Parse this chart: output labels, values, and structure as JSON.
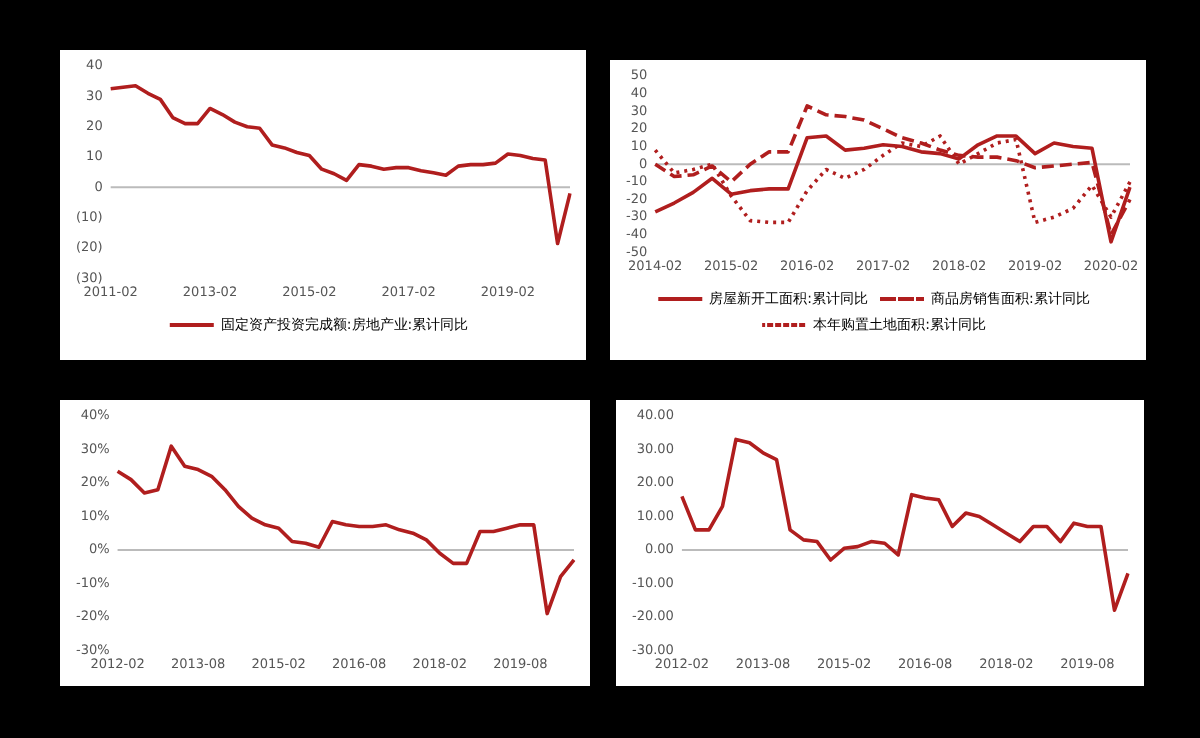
{
  "chart_data": [
    {
      "type": "line",
      "categories": [
        "2011-02",
        null,
        null,
        null,
        null,
        null,
        null,
        null,
        "2013-02",
        null,
        null,
        null,
        null,
        null,
        null,
        null,
        "2015-02",
        null,
        null,
        null,
        null,
        null,
        null,
        null,
        "2017-02",
        null,
        null,
        null,
        null,
        null,
        null,
        null,
        "2019-02",
        null,
        null,
        null,
        null,
        null
      ],
      "series": [
        {
          "name": "固定资产投资完成额:房地产业:累计同比",
          "color": "#b01e1e",
          "values": [
            32.5,
            33,
            33.5,
            31,
            29,
            23,
            21,
            21,
            26,
            24,
            21.5,
            20,
            19.5,
            14,
            13,
            11.5,
            10.5,
            6,
            4.5,
            2.3,
            7.5,
            7,
            6,
            6.5,
            6.5,
            5.5,
            4.8,
            4,
            7,
            7.5,
            7.5,
            8,
            11,
            10.5,
            9.5,
            9,
            -18.5,
            -2
          ]
        }
      ],
      "ref_lines": [
        {
          "axis": "y",
          "value": 0,
          "color": "#bbbbbb"
        }
      ],
      "ylim": [
        -30,
        40
      ],
      "yticks": [
        40,
        30,
        20,
        10,
        0,
        {
          "value": -10,
          "label": "(10)"
        },
        {
          "value": -20,
          "label": "(20)"
        },
        {
          "value": -30,
          "label": "(30)"
        }
      ],
      "grid": false,
      "legend": "bottom",
      "marker": "none"
    },
    {
      "type": "line",
      "categories": [
        "2014-02",
        null,
        null,
        null,
        "2015-02",
        null,
        null,
        null,
        "2016-02",
        null,
        null,
        null,
        "2017-02",
        null,
        null,
        null,
        "2018-02",
        null,
        null,
        null,
        "2019-02",
        null,
        null,
        null,
        "2020-02",
        null
      ],
      "series": [
        {
          "name": "房屋新开工面积:累计同比",
          "color": "#b01e1e",
          "line_style": "solid",
          "values": [
            -27,
            -22,
            -16,
            -8,
            -17,
            -15,
            -14,
            -14,
            15,
            16,
            8,
            9,
            11,
            10,
            7,
            6,
            3,
            11,
            16,
            16,
            6,
            12,
            10,
            9,
            -44,
            -13
          ]
        },
        {
          "name": "商品房销售面积:累计同比",
          "color": "#b01e1e",
          "line_style": "dashed",
          "values": [
            0,
            -7,
            -6,
            -1,
            -10,
            0,
            7,
            7,
            33,
            28,
            27,
            25,
            20,
            15,
            12,
            8,
            5,
            4,
            4,
            2,
            -2,
            -1,
            0,
            1,
            -40,
            -20
          ]
        },
        {
          "name": "本年购置土地面积:累计同比",
          "color": "#b01e1e",
          "line_style": "dotted",
          "values": [
            8,
            -5,
            -3,
            0,
            -18,
            -32,
            -33,
            -33,
            -15,
            -3,
            -8,
            -3,
            5,
            12,
            10,
            16,
            0,
            6,
            12,
            14,
            -33,
            -30,
            -25,
            -12,
            -30,
            -10
          ]
        }
      ],
      "ref_lines": [
        {
          "axis": "y",
          "value": 0,
          "color": "#bbbbbb"
        }
      ],
      "ylim": [
        -50,
        50
      ],
      "yticks": [
        50,
        40,
        30,
        20,
        10,
        0,
        -10,
        -20,
        -30,
        -40,
        -50
      ],
      "grid": false,
      "legend": "bottom",
      "marker": "none"
    },
    {
      "type": "line",
      "categories": [
        "2012-02",
        null,
        null,
        null,
        null,
        null,
        "2013-08",
        null,
        null,
        null,
        null,
        null,
        "2015-02",
        null,
        null,
        null,
        null,
        null,
        "2016-08",
        null,
        null,
        null,
        null,
        null,
        "2018-02",
        null,
        null,
        null,
        null,
        null,
        "2019-08",
        null,
        null,
        null,
        null
      ],
      "series": [
        {
          "color": "#b01e1e",
          "values": [
            23.5,
            21,
            17,
            18,
            31,
            25,
            24,
            22,
            18,
            13,
            9.5,
            7.5,
            6.5,
            2.5,
            2,
            0.8,
            8.5,
            7.5,
            7,
            7,
            7.5,
            6,
            5,
            3,
            -1,
            -4,
            -4,
            5.5,
            5.5,
            6.5,
            7.5,
            7.5,
            -19,
            -8,
            -3
          ]
        }
      ],
      "ref_lines": [
        {
          "axis": "y",
          "value": 0,
          "color": "#bbbbbb"
        }
      ],
      "ylim": [
        -30,
        40
      ],
      "yticks": [
        {
          "value": 40,
          "label": "40%"
        },
        {
          "value": 30,
          "label": "30%"
        },
        {
          "value": 20,
          "label": "20%"
        },
        {
          "value": 10,
          "label": "10%"
        },
        {
          "value": 0,
          "label": "0%"
        },
        {
          "value": -10,
          "label": "-10%"
        },
        {
          "value": -20,
          "label": "-20%"
        },
        {
          "value": -30,
          "label": "-30%"
        }
      ],
      "grid": false,
      "legend": false,
      "marker": "none"
    },
    {
      "type": "line",
      "categories": [
        "2012-02",
        null,
        null,
        null,
        null,
        null,
        "2013-08",
        null,
        null,
        null,
        null,
        null,
        "2015-02",
        null,
        null,
        null,
        null,
        null,
        "2016-08",
        null,
        null,
        null,
        null,
        null,
        "2018-02",
        null,
        null,
        null,
        null,
        null,
        "2019-08",
        null,
        null,
        null
      ],
      "series": [
        {
          "color": "#b01e1e",
          "values": [
            16,
            6,
            6,
            13,
            33,
            32,
            29,
            27,
            6,
            3,
            2.5,
            -3,
            0.5,
            1,
            2.5,
            2,
            -1.5,
            16.5,
            15.5,
            15,
            7,
            11,
            10,
            7.5,
            5,
            2.5,
            7,
            7,
            2.5,
            8,
            7,
            7,
            -18,
            -7
          ]
        }
      ],
      "ref_lines": [
        {
          "axis": "y",
          "value": 0,
          "color": "#bbbbbb"
        }
      ],
      "ylim": [
        -30,
        40
      ],
      "yticks": [
        {
          "value": 40,
          "label": "40.00"
        },
        {
          "value": 30,
          "label": "30.00"
        },
        {
          "value": 20,
          "label": "20.00"
        },
        {
          "value": 10,
          "label": "10.00"
        },
        {
          "value": 0,
          "label": "0.00"
        },
        {
          "value": -10,
          "label": "-10.00"
        },
        {
          "value": -20,
          "label": "-20.00"
        },
        {
          "value": -30,
          "label": "-30.00"
        }
      ],
      "grid": false,
      "legend": false,
      "marker": "none"
    }
  ]
}
